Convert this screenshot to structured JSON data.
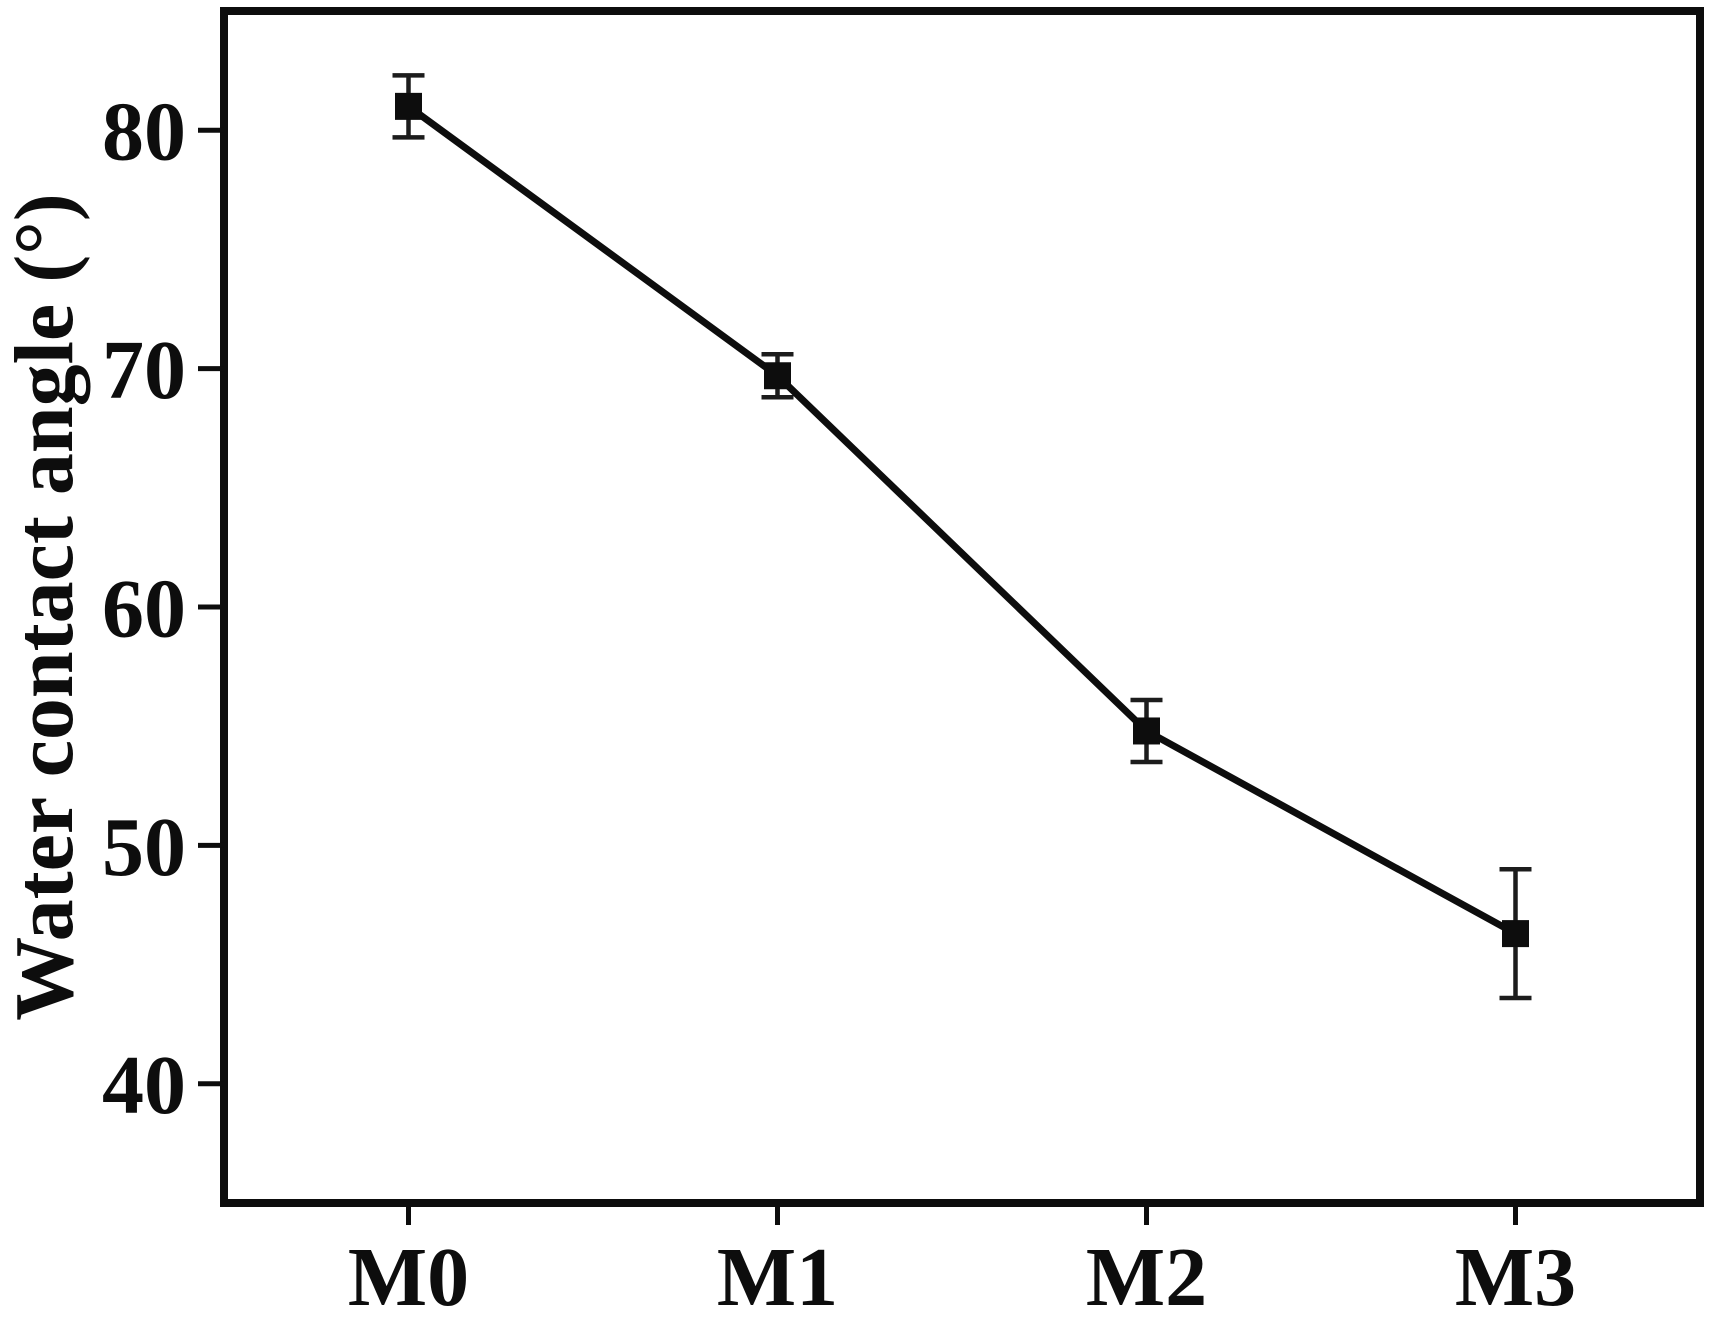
{
  "chart_data": {
    "type": "line",
    "title": "",
    "categories": [
      "M0",
      "M1",
      "M2",
      "M3"
    ],
    "values": [
      81.0,
      69.7,
      54.8,
      46.3
    ],
    "errors": [
      1.3,
      0.9,
      1.3,
      2.7
    ],
    "xlabel": "",
    "ylabel": "Water contact angle (°)",
    "yticks": [
      80,
      70,
      60,
      50,
      40
    ],
    "ylim": [
      35,
      85
    ],
    "grid": false,
    "legend": "none",
    "marker": "filled-square",
    "colors": {
      "line": "#0d0d0d",
      "marker": "#0d0d0d",
      "error_bar": "#1c1c1c",
      "axis": "#0d0d0d",
      "text": "#0d0d0d",
      "background": "#ffffff"
    }
  }
}
